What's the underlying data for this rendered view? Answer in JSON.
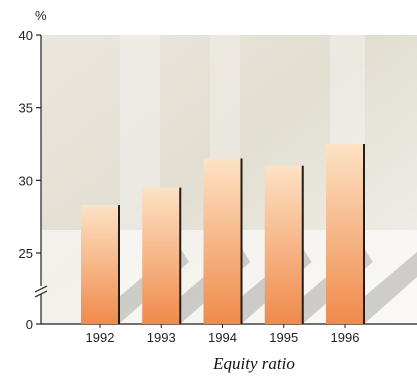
{
  "chart_data": {
    "type": "bar",
    "title": "Equity ratio",
    "ylabel": "%",
    "categories": [
      "1992",
      "1993",
      "1994",
      "1995",
      "1996"
    ],
    "values": [
      28.3,
      29.5,
      31.5,
      31.0,
      32.5
    ],
    "y_tick_labels": [
      "0",
      "25",
      "30",
      "35",
      "40"
    ],
    "y_ticks_data": [
      0,
      25,
      30,
      35,
      40
    ],
    "y_axis_break": true,
    "ylim": [
      0,
      40
    ],
    "grid": false,
    "colors": {
      "bar_top": "#fde2c4",
      "bar_bottom": "#f08a4b",
      "bar_edge": "#1f1f1f",
      "axis": "#222222",
      "background_texture": "#ddd9cc"
    }
  }
}
